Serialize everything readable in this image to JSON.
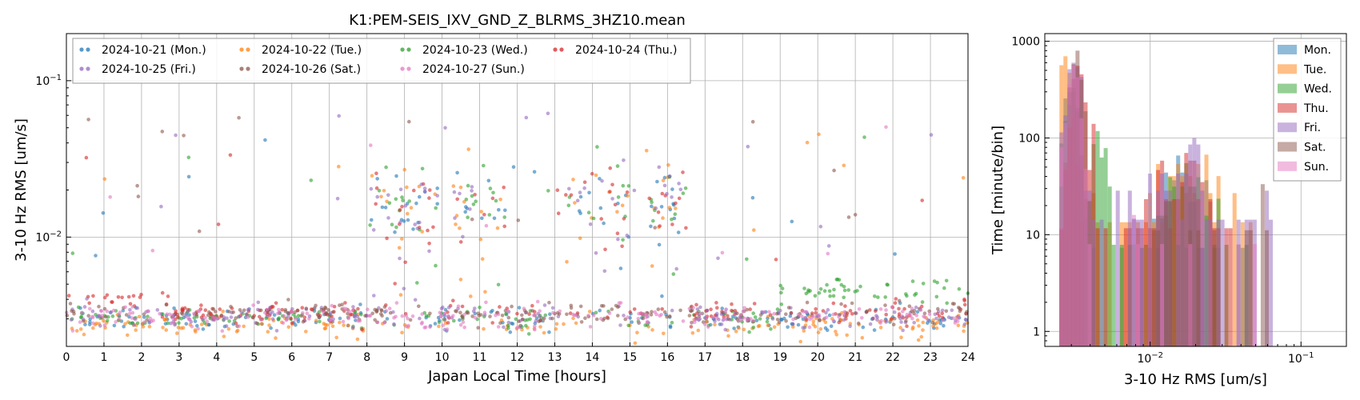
{
  "figure": {
    "title": "K1:PEM-SEIS_IXV_GND_Z_BLRMS_3HZ10.mean"
  },
  "chart_data": [
    {
      "type": "scatter",
      "title": "K1:PEM-SEIS_IXV_GND_Z_BLRMS_3HZ10.mean",
      "xlabel": "Japan Local Time [hours]",
      "ylabel": "3-10 Hz RMS [um/s]",
      "xlim": [
        0,
        24
      ],
      "ylim": [
        0.002,
        0.2
      ],
      "yscale": "log",
      "grid": true,
      "legend_position": "top-left",
      "x_ticks": [
        "0",
        "1",
        "2",
        "3",
        "4",
        "5",
        "6",
        "7",
        "8",
        "9",
        "10",
        "11",
        "12",
        "13",
        "14",
        "15",
        "16",
        "17",
        "18",
        "19",
        "20",
        "21",
        "22",
        "23",
        "24"
      ],
      "y_ticks": [
        "10⁻²",
        "10⁻¹"
      ],
      "series": [
        {
          "name": "2024-10-21 (Mon.)",
          "color": "#1f77b4"
        },
        {
          "name": "2024-10-22 (Tue.)",
          "color": "#ff7f0e"
        },
        {
          "name": "2024-10-23 (Wed.)",
          "color": "#2ca02c"
        },
        {
          "name": "2024-10-24 (Thu.)",
          "color": "#d62728"
        },
        {
          "name": "2024-10-25 (Fri.)",
          "color": "#9467bd"
        },
        {
          "name": "2024-10-26 (Sat.)",
          "color": "#8c564b"
        },
        {
          "name": "2024-10-27 (Sun.)",
          "color": "#e377c2"
        }
      ],
      "baseline_levels": [
        0.003,
        0.0027,
        0.003,
        0.0033,
        0.0031,
        0.0032,
        0.0031
      ],
      "activity_windows_hours": [
        [
          8.0,
          9.9
        ],
        [
          10.3,
          11.7
        ],
        [
          13.0,
          15.0
        ],
        [
          15.5,
          16.5
        ]
      ],
      "activity_level": 0.017,
      "wednesday_evening_level": 0.0045
    },
    {
      "type": "bar",
      "title": "",
      "xlabel": "3-10 Hz RMS [um/s]",
      "ylabel": "Time [minute/bin]",
      "xscale": "log",
      "yscale": "log",
      "xlim": [
        0.002,
        0.2
      ],
      "ylim": [
        0.7,
        1200
      ],
      "grid": true,
      "legend_position": "top-right",
      "x_ticks": [
        "10⁻²",
        "10⁻¹"
      ],
      "y_ticks": [
        "1",
        "10",
        "100",
        "1000"
      ],
      "series": [
        {
          "name": "Mon.",
          "color": "#1f77b4",
          "peak_x": 0.0031,
          "peak_count": 300
        },
        {
          "name": "Tue.",
          "color": "#ff7f0e",
          "peak_x": 0.0029,
          "peak_count": 700
        },
        {
          "name": "Wed.",
          "color": "#2ca02c",
          "peak_x": 0.0032,
          "peak_count": 330
        },
        {
          "name": "Thu.",
          "color": "#d62728",
          "peak_x": 0.0034,
          "peak_count": 560
        },
        {
          "name": "Fri.",
          "color": "#9467bd",
          "peak_x": 0.0031,
          "peak_count": 600
        },
        {
          "name": "Sat.",
          "color": "#8c564b",
          "peak_x": 0.0032,
          "peak_count": 800
        },
        {
          "name": "Sun.",
          "color": "#e377c2",
          "peak_x": 0.003,
          "peak_count": 560
        }
      ]
    }
  ]
}
